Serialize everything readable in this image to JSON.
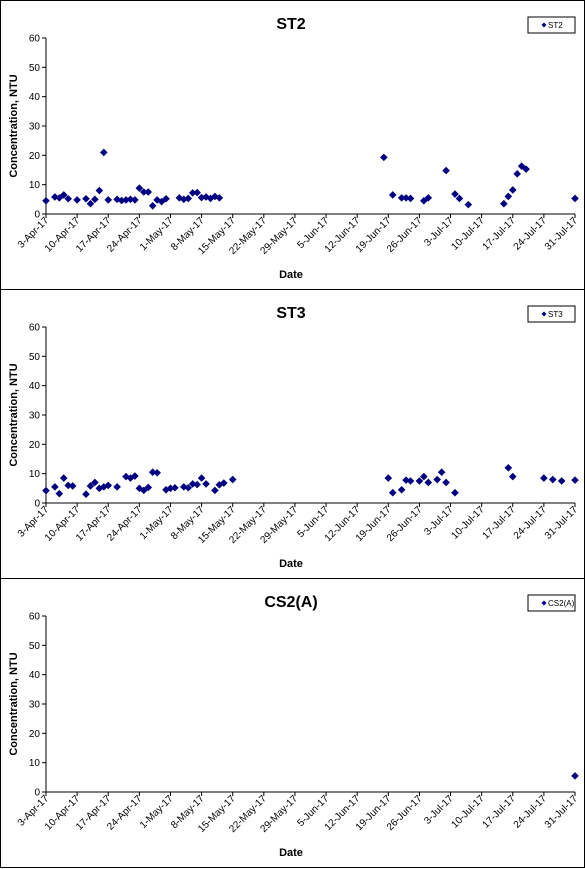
{
  "chart_data": [
    {
      "type": "scatter",
      "title": "ST2",
      "xlabel": "Date",
      "ylabel": "Concentration, NTU",
      "ylim": [
        0,
        60
      ],
      "yticks": [
        0,
        10,
        20,
        30,
        40,
        50,
        60
      ],
      "xlim": [
        "2017-04-03",
        "2017-07-31"
      ],
      "xticks": [
        "3-Apr-17",
        "10-Apr-17",
        "17-Apr-17",
        "24-Apr-17",
        "1-May-17",
        "8-May-17",
        "15-May-17",
        "22-May-17",
        "29-May-17",
        "5-Jun-17",
        "12-Jun-17",
        "19-Jun-17",
        "26-Jun-17",
        "3-Jul-17",
        "10-Jul-17",
        "17-Jul-17",
        "24-Jul-17",
        "31-Jul-17"
      ],
      "legend": "top-right",
      "grid": false,
      "series": [
        {
          "name": "ST2",
          "color": "#000080",
          "points": [
            [
              "2017-04-03",
              4.5
            ],
            [
              "2017-04-05",
              5.8
            ],
            [
              "2017-04-06",
              5.5
            ],
            [
              "2017-04-07",
              6.5
            ],
            [
              "2017-04-08",
              5.2
            ],
            [
              "2017-04-10",
              4.8
            ],
            [
              "2017-04-12",
              5.2
            ],
            [
              "2017-04-13",
              3.5
            ],
            [
              "2017-04-14",
              5.0
            ],
            [
              "2017-04-15",
              8.0
            ],
            [
              "2017-04-16",
              21.0
            ],
            [
              "2017-04-17",
              4.8
            ],
            [
              "2017-04-19",
              5.0
            ],
            [
              "2017-04-20",
              4.6
            ],
            [
              "2017-04-21",
              4.8
            ],
            [
              "2017-04-22",
              5.0
            ],
            [
              "2017-04-23",
              4.8
            ],
            [
              "2017-04-24",
              8.8
            ],
            [
              "2017-04-25",
              7.5
            ],
            [
              "2017-04-26",
              7.5
            ],
            [
              "2017-04-27",
              2.8
            ],
            [
              "2017-04-28",
              4.8
            ],
            [
              "2017-04-29",
              4.2
            ],
            [
              "2017-04-30",
              5.2
            ],
            [
              "2017-05-03",
              5.5
            ],
            [
              "2017-05-04",
              5.0
            ],
            [
              "2017-05-05",
              5.3
            ],
            [
              "2017-05-06",
              7.2
            ],
            [
              "2017-05-07",
              7.3
            ],
            [
              "2017-05-08",
              5.6
            ],
            [
              "2017-05-09",
              5.8
            ],
            [
              "2017-05-10",
              5.3
            ],
            [
              "2017-05-11",
              6.0
            ],
            [
              "2017-05-12",
              5.5
            ],
            [
              "2017-06-18",
              19.3
            ],
            [
              "2017-06-20",
              6.5
            ],
            [
              "2017-06-22",
              5.5
            ],
            [
              "2017-06-23",
              5.5
            ],
            [
              "2017-06-24",
              5.3
            ],
            [
              "2017-06-27",
              4.5
            ],
            [
              "2017-06-28",
              5.5
            ],
            [
              "2017-07-02",
              14.8
            ],
            [
              "2017-07-04",
              6.8
            ],
            [
              "2017-07-05",
              5.3
            ],
            [
              "2017-07-07",
              3.2
            ],
            [
              "2017-07-15",
              3.5
            ],
            [
              "2017-07-16",
              6.0
            ],
            [
              "2017-07-17",
              8.2
            ],
            [
              "2017-07-18",
              13.7
            ],
            [
              "2017-07-19",
              16.3
            ],
            [
              "2017-07-20",
              15.3
            ],
            [
              "2017-07-31",
              5.3
            ]
          ]
        }
      ]
    },
    {
      "type": "scatter",
      "title": "ST3",
      "xlabel": "Date",
      "ylabel": "Concentration, NTU",
      "ylim": [
        0,
        60
      ],
      "yticks": [
        0,
        10,
        20,
        30,
        40,
        50,
        60
      ],
      "xlim": [
        "2017-04-03",
        "2017-07-31"
      ],
      "xticks": [
        "3-Apr-17",
        "10-Apr-17",
        "17-Apr-17",
        "24-Apr-17",
        "1-May-17",
        "8-May-17",
        "15-May-17",
        "22-May-17",
        "29-May-17",
        "5-Jun-17",
        "12-Jun-17",
        "19-Jun-17",
        "26-Jun-17",
        "3-Jul-17",
        "10-Jul-17",
        "17-Jul-17",
        "24-Jul-17",
        "31-Jul-17"
      ],
      "legend": "top-right",
      "grid": false,
      "series": [
        {
          "name": "ST3",
          "color": "#000080",
          "points": [
            [
              "2017-04-03",
              4.2
            ],
            [
              "2017-04-05",
              5.5
            ],
            [
              "2017-04-06",
              3.2
            ],
            [
              "2017-04-07",
              8.5
            ],
            [
              "2017-04-08",
              6.0
            ],
            [
              "2017-04-09",
              5.8
            ],
            [
              "2017-04-12",
              3.0
            ],
            [
              "2017-04-13",
              5.8
            ],
            [
              "2017-04-14",
              7.0
            ],
            [
              "2017-04-15",
              5.0
            ],
            [
              "2017-04-16",
              5.5
            ],
            [
              "2017-04-17",
              6.0
            ],
            [
              "2017-04-19",
              5.5
            ],
            [
              "2017-04-21",
              9.0
            ],
            [
              "2017-04-22",
              8.5
            ],
            [
              "2017-04-23",
              9.2
            ],
            [
              "2017-04-24",
              5.0
            ],
            [
              "2017-04-25",
              4.3
            ],
            [
              "2017-04-26",
              5.3
            ],
            [
              "2017-04-27",
              10.5
            ],
            [
              "2017-04-28",
              10.3
            ],
            [
              "2017-04-30",
              4.5
            ],
            [
              "2017-05-01",
              5.0
            ],
            [
              "2017-05-02",
              5.2
            ],
            [
              "2017-05-04",
              5.5
            ],
            [
              "2017-05-05",
              5.2
            ],
            [
              "2017-05-06",
              6.5
            ],
            [
              "2017-05-07",
              6.3
            ],
            [
              "2017-05-08",
              8.5
            ],
            [
              "2017-05-09",
              6.5
            ],
            [
              "2017-05-11",
              4.3
            ],
            [
              "2017-05-12",
              6.2
            ],
            [
              "2017-05-13",
              6.8
            ],
            [
              "2017-05-15",
              8.0
            ],
            [
              "2017-06-19",
              8.5
            ],
            [
              "2017-06-20",
              3.5
            ],
            [
              "2017-06-22",
              4.5
            ],
            [
              "2017-06-23",
              7.8
            ],
            [
              "2017-06-24",
              7.5
            ],
            [
              "2017-06-26",
              7.5
            ],
            [
              "2017-06-27",
              9.0
            ],
            [
              "2017-06-28",
              7.0
            ],
            [
              "2017-06-30",
              8.0
            ],
            [
              "2017-07-01",
              10.5
            ],
            [
              "2017-07-02",
              7.0
            ],
            [
              "2017-07-04",
              3.5
            ],
            [
              "2017-07-16",
              12.0
            ],
            [
              "2017-07-17",
              9.0
            ],
            [
              "2017-07-24",
              8.5
            ],
            [
              "2017-07-26",
              8.0
            ],
            [
              "2017-07-28",
              7.5
            ],
            [
              "2017-07-31",
              7.8
            ]
          ]
        }
      ]
    },
    {
      "type": "scatter",
      "title": "CS2(A)",
      "xlabel": "Date",
      "ylabel": "Concentration, NTU",
      "ylim": [
        0,
        60
      ],
      "yticks": [
        0,
        10,
        20,
        30,
        40,
        50,
        60
      ],
      "xlim": [
        "2017-04-03",
        "2017-07-31"
      ],
      "xticks": [
        "3-Apr-17",
        "10-Apr-17",
        "17-Apr-17",
        "24-Apr-17",
        "1-May-17",
        "8-May-17",
        "15-May-17",
        "22-May-17",
        "29-May-17",
        "5-Jun-17",
        "12-Jun-17",
        "19-Jun-17",
        "26-Jun-17",
        "3-Jul-17",
        "10-Jul-17",
        "17-Jul-17",
        "24-Jul-17",
        "31-Jul-17"
      ],
      "legend": "top-right",
      "grid": false,
      "series": [
        {
          "name": "CS2(A)",
          "color": "#000080",
          "points": [
            [
              "2017-07-31",
              5.5
            ]
          ]
        }
      ]
    }
  ]
}
